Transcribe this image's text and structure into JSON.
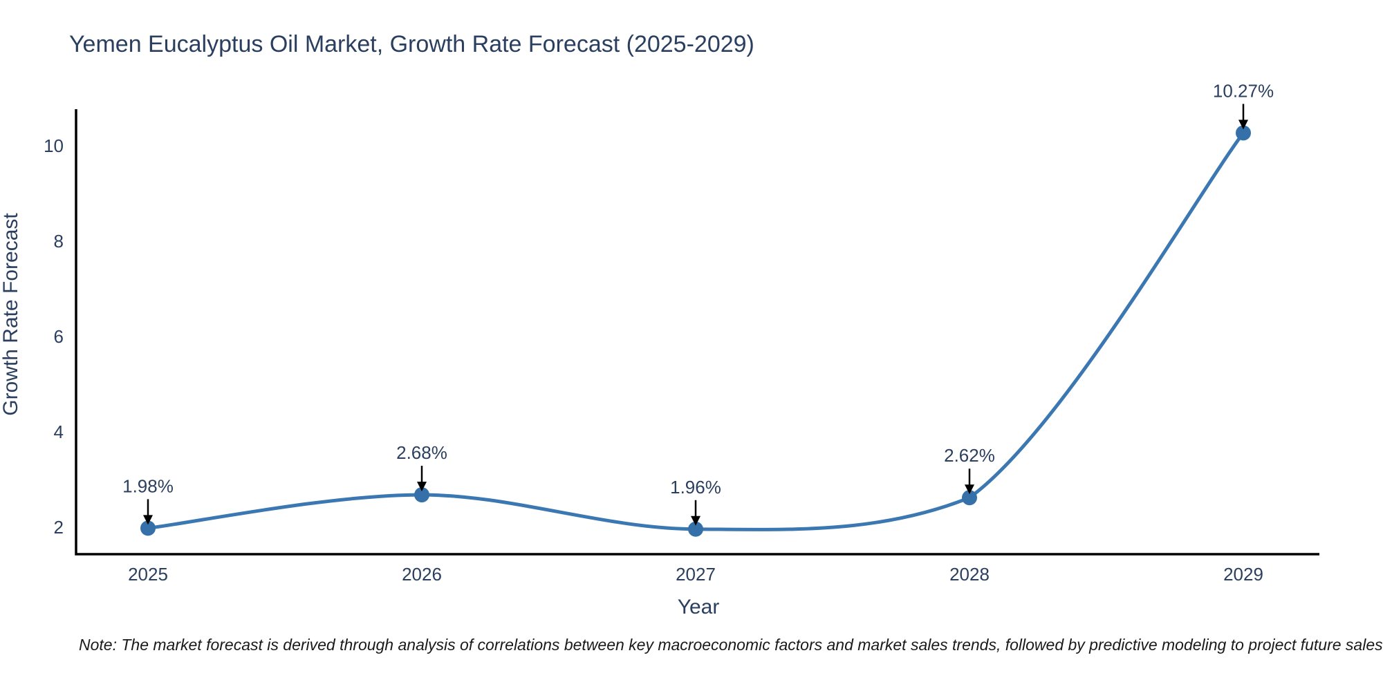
{
  "chart": {
    "title": "Yemen Eucalyptus Oil Market, Growth Rate Forecast (2025-2029)",
    "x_axis_label": "Year",
    "y_axis_label": "Growth Rate Forecast",
    "note": "Note: The market forecast is derived through analysis of correlations between key macroeconomic factors and market sales trends, followed by predictive modeling to project future sales",
    "colors": {
      "title_text": "#2a3f5f",
      "axis_text": "#2a3f5f",
      "note_text": "#1a1a1a",
      "spine": "#000000",
      "line": "#3b78b2",
      "marker": "#3670a8",
      "annotation_arrow": "#000000"
    }
  },
  "chart_data": {
    "type": "line",
    "line_shape": "spline",
    "title": "Yemen Eucalyptus Oil Market, Growth Rate Forecast (2025-2029)",
    "xlabel": "Year",
    "ylabel": "Growth Rate Forecast",
    "x": [
      2025,
      2026,
      2027,
      2028,
      2029
    ],
    "y": [
      1.98,
      2.68,
      1.96,
      2.62,
      10.27
    ],
    "point_labels": [
      "1.98%",
      "2.68%",
      "1.96%",
      "2.62%",
      "10.27%"
    ],
    "x_tick_labels": [
      "2025",
      "2026",
      "2027",
      "2028",
      "2029"
    ],
    "y_tick_values": [
      2,
      4,
      6,
      8,
      10
    ],
    "xlim": [
      2024.74,
      2029.28
    ],
    "ylim": [
      1.43,
      10.77
    ],
    "grid": false,
    "legend": false,
    "annotations_have_arrows": true
  }
}
